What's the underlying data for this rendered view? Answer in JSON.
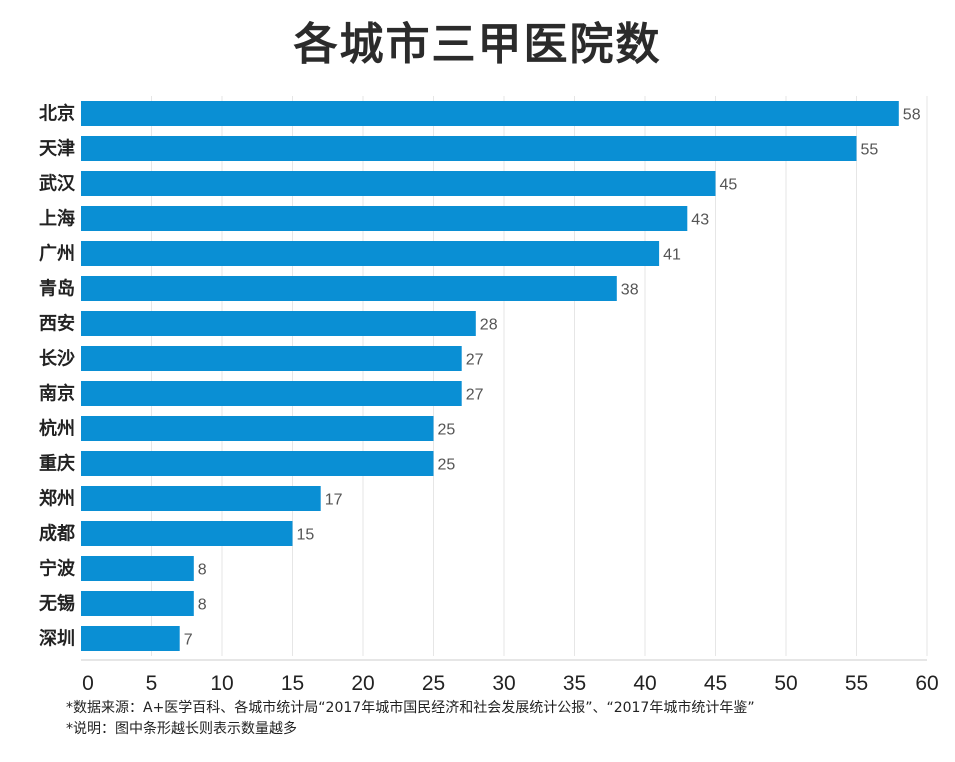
{
  "chart_data": {
    "type": "bar",
    "orientation": "horizontal",
    "title": "各城市三甲医院数",
    "categories": [
      "北京",
      "天津",
      "武汉",
      "上海",
      "广州",
      "青岛",
      "西安",
      "长沙",
      "南京",
      "杭州",
      "重庆",
      "郑州",
      "成都",
      "宁波",
      "无锡",
      "深圳"
    ],
    "values": [
      58,
      55,
      45,
      43,
      41,
      38,
      28,
      27,
      27,
      25,
      25,
      17,
      15,
      8,
      8,
      7
    ],
    "xlim": [
      0,
      60
    ],
    "xticks": [
      0,
      5,
      10,
      15,
      20,
      25,
      30,
      35,
      40,
      45,
      50,
      55,
      60
    ],
    "grid": true,
    "bar_color": "#0a8fd4"
  },
  "notes": {
    "source": "*数据来源：A+医学百科、各城市统计局“2017年城市国民经济和社会发展统计公报”、“2017年城市统计年鉴”",
    "desc": "*说明：图中条形越长则表示数量越多"
  }
}
